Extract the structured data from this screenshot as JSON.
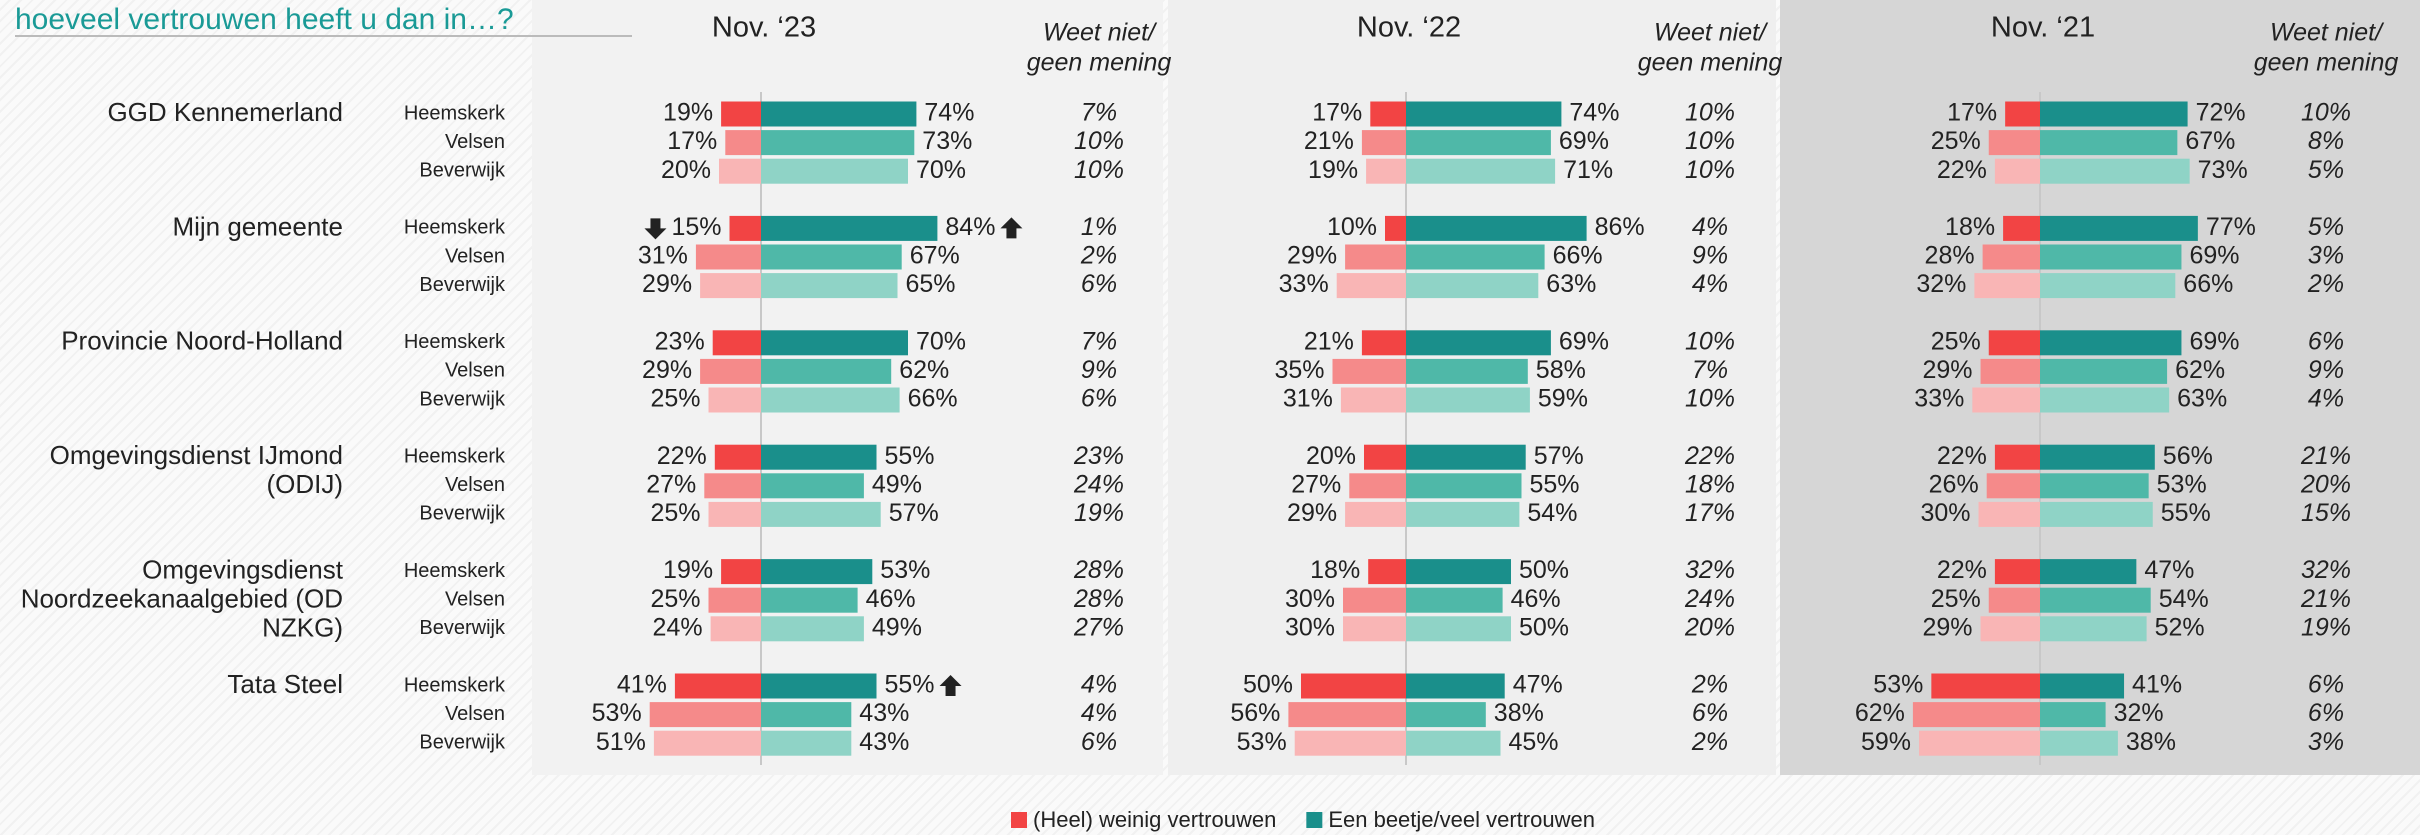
{
  "chart_data": {
    "type": "diverging-bar",
    "title": "hoeveel vertrouwen heeft u dan in…?",
    "organizations": [
      [
        "GGD Kennemerland"
      ],
      [
        "Mijn gemeente"
      ],
      [
        "Provincie Noord-Holland"
      ],
      [
        "Omgevingsdienst IJmond",
        "(ODIJ)"
      ],
      [
        "Omgevingsdienst",
        "Noordzeekanaalgebied (OD",
        "NZKG)"
      ],
      [
        "Tata Steel"
      ]
    ],
    "municipalities": [
      "Heemskerk",
      "Velsen",
      "Beverwijk"
    ],
    "legend": [
      {
        "name": "(Heel) weinig vertrouwen",
        "color": "#f24444"
      },
      {
        "name": "Een beetje/veel vertrouwen",
        "color": "#1a8f8b"
      }
    ],
    "low_colors": [
      "#f24444",
      "#f58a8a",
      "#f9b5b5"
    ],
    "high_colors": [
      "#1a8f8b",
      "#4fb8a8",
      "#8fd3c6"
    ],
    "significance": [
      {
        "panel": 0,
        "organization": 1,
        "municipality": 0,
        "side": "low",
        "direction": "down"
      },
      {
        "panel": 0,
        "organization": 1,
        "municipality": 0,
        "side": "high",
        "direction": "up"
      },
      {
        "panel": 0,
        "organization": 5,
        "municipality": 0,
        "side": "high",
        "direction": "up"
      }
    ],
    "panels": [
      {
        "title": "Nov. ‘23",
        "na_title": [
          "Weet niet/",
          "geen mening"
        ],
        "background": "#f2f2f2",
        "low": [
          [
            19,
            17,
            20
          ],
          [
            15,
            31,
            29
          ],
          [
            23,
            29,
            25
          ],
          [
            22,
            27,
            25
          ],
          [
            19,
            25,
            24
          ],
          [
            41,
            53,
            51
          ]
        ],
        "low_labels": [
          [
            "19%",
            "17%",
            "20%"
          ],
          [
            "15%",
            "31%",
            "29%"
          ],
          [
            "23%",
            "29%",
            "25%"
          ],
          [
            "22%",
            "27%",
            "25%"
          ],
          [
            "19%",
            "25%",
            "24%"
          ],
          [
            "41%",
            "53%",
            "51%"
          ]
        ],
        "high": [
          [
            74,
            73,
            70
          ],
          [
            84,
            67,
            65
          ],
          [
            70,
            62,
            66
          ],
          [
            55,
            49,
            57
          ],
          [
            53,
            46,
            49
          ],
          [
            55,
            43,
            43
          ]
        ],
        "high_labels": [
          [
            "74%",
            "73%",
            "70%"
          ],
          [
            "84%",
            "67%",
            "65%"
          ],
          [
            "70%",
            "62%",
            "66%"
          ],
          [
            "55%",
            "49%",
            "57%"
          ],
          [
            "53%",
            "46%",
            "49%"
          ],
          [
            "55%",
            "43%",
            "43%"
          ]
        ],
        "na_labels": [
          [
            "7%",
            "10%",
            "10%"
          ],
          [
            "1%",
            "2%",
            "6%"
          ],
          [
            "7%",
            "9%",
            "6%"
          ],
          [
            "23%",
            "24%",
            "19%"
          ],
          [
            "28%",
            "28%",
            "27%"
          ],
          [
            "4%",
            "4%",
            "6%"
          ]
        ]
      },
      {
        "title": "Nov. ‘22",
        "na_title": [
          "Weet niet/",
          "geen mening"
        ],
        "background": "#efefef",
        "low": [
          [
            17,
            21,
            19
          ],
          [
            10,
            29,
            33
          ],
          [
            21,
            35,
            31
          ],
          [
            20,
            27,
            29
          ],
          [
            18,
            30,
            30
          ],
          [
            50,
            56,
            53
          ]
        ],
        "low_labels": [
          [
            "17%",
            "21%",
            "19%"
          ],
          [
            "10%",
            "29%",
            "33%"
          ],
          [
            "21%",
            "35%",
            "31%"
          ],
          [
            "20%",
            "27%",
            "29%"
          ],
          [
            "18%",
            "30%",
            "30%"
          ],
          [
            "50%",
            "56%",
            "53%"
          ]
        ],
        "high": [
          [
            74,
            69,
            71
          ],
          [
            86,
            66,
            63
          ],
          [
            69,
            58,
            59
          ],
          [
            57,
            55,
            54
          ],
          [
            50,
            46,
            50
          ],
          [
            47,
            38,
            45
          ]
        ],
        "high_labels": [
          [
            "74%",
            "69%",
            "71%"
          ],
          [
            "86%",
            "66%",
            "63%"
          ],
          [
            "69%",
            "58%",
            "59%"
          ],
          [
            "57%",
            "55%",
            "54%"
          ],
          [
            "50%",
            "46%",
            "50%"
          ],
          [
            "47%",
            "38%",
            "45%"
          ]
        ],
        "na_labels": [
          [
            "10%",
            "10%",
            "10%"
          ],
          [
            "4%",
            "9%",
            "4%"
          ],
          [
            "10%",
            "7%",
            "10%"
          ],
          [
            "22%",
            "18%",
            "17%"
          ],
          [
            "32%",
            "24%",
            "20%"
          ],
          [
            "2%",
            "6%",
            "2%"
          ]
        ]
      },
      {
        "title": "Nov. ‘21",
        "na_title": [
          "Weet niet/",
          "geen mening"
        ],
        "background": "#d6d6d6",
        "low": [
          [
            17,
            25,
            22
          ],
          [
            18,
            28,
            32
          ],
          [
            25,
            29,
            33
          ],
          [
            22,
            26,
            30
          ],
          [
            22,
            25,
            29
          ],
          [
            53,
            62,
            59
          ]
        ],
        "low_labels": [
          [
            "17%",
            "25%",
            "22%"
          ],
          [
            "18%",
            "28%",
            "32%"
          ],
          [
            "25%",
            "29%",
            "33%"
          ],
          [
            "22%",
            "26%",
            "30%"
          ],
          [
            "22%",
            "25%",
            "29%"
          ],
          [
            "53%",
            "62%",
            "59%"
          ]
        ],
        "high": [
          [
            72,
            67,
            73
          ],
          [
            77,
            69,
            66
          ],
          [
            69,
            62,
            63
          ],
          [
            56,
            53,
            55
          ],
          [
            47,
            54,
            52
          ],
          [
            41,
            32,
            38
          ]
        ],
        "high_labels": [
          [
            "72%",
            "67%",
            "73%"
          ],
          [
            "77%",
            "69%",
            "66%"
          ],
          [
            "69%",
            "62%",
            "63%"
          ],
          [
            "56%",
            "53%",
            "55%"
          ],
          [
            "47%",
            "54%",
            "52%"
          ],
          [
            "41%",
            "32%",
            "38%"
          ]
        ],
        "na_labels": [
          [
            "10%",
            "8%",
            "5%"
          ],
          [
            "5%",
            "3%",
            "2%"
          ],
          [
            "6%",
            "9%",
            "4%"
          ],
          [
            "21%",
            "20%",
            "15%"
          ],
          [
            "32%",
            "21%",
            "19%"
          ],
          [
            "6%",
            "6%",
            "3%"
          ]
        ]
      }
    ]
  }
}
